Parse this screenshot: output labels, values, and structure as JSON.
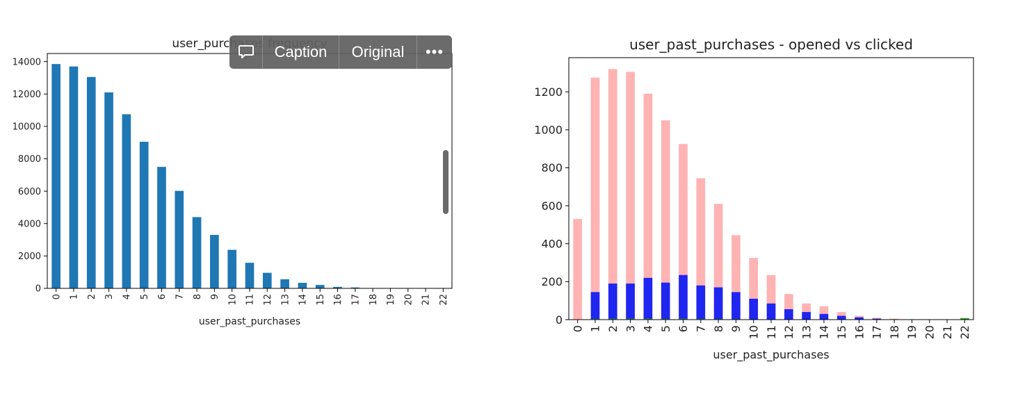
{
  "toolbar": {
    "comment_icon": "speech-bubble-icon",
    "caption_label": "Caption",
    "original_label": "Original",
    "more_icon": "ellipsis-icon",
    "more_label": "•••"
  },
  "chart_data": [
    {
      "type": "bar",
      "title": "user_purchases frequency",
      "xlabel": "user_past_purchases",
      "ylabel": "",
      "categories": [
        "0",
        "1",
        "2",
        "3",
        "4",
        "5",
        "6",
        "7",
        "8",
        "9",
        "10",
        "11",
        "12",
        "13",
        "14",
        "15",
        "16",
        "17",
        "18",
        "19",
        "20",
        "21",
        "22"
      ],
      "values": [
        13850,
        13700,
        13050,
        12100,
        10750,
        9050,
        7500,
        6020,
        4400,
        3300,
        2380,
        1580,
        960,
        560,
        340,
        210,
        90,
        55,
        20,
        12,
        8,
        5,
        3
      ],
      "ylim": [
        0,
        14500
      ],
      "yticks": [
        0,
        2000,
        4000,
        6000,
        8000,
        10000,
        12000,
        14000
      ],
      "color": "#1f77b4",
      "grid": false
    },
    {
      "type": "bar",
      "title": "user_past_purchases - opened vs clicked",
      "xlabel": "user_past_purchases",
      "ylabel": "",
      "categories": [
        "0",
        "1",
        "2",
        "3",
        "4",
        "5",
        "6",
        "7",
        "8",
        "9",
        "10",
        "11",
        "12",
        "13",
        "14",
        "15",
        "16",
        "17",
        "18",
        "19",
        "20",
        "21",
        "22"
      ],
      "ylim": [
        0,
        1380
      ],
      "yticks": [
        0,
        200,
        400,
        600,
        800,
        1000,
        1200
      ],
      "grid": false,
      "series": [
        {
          "color": "#ffb3b3",
          "values": [
            530,
            1275,
            1320,
            1305,
            1190,
            1050,
            925,
            745,
            610,
            445,
            325,
            235,
            135,
            85,
            70,
            40,
            20,
            10,
            5,
            2,
            1,
            1,
            0
          ]
        },
        {
          "color": "#1f26f0",
          "values": [
            0,
            145,
            190,
            190,
            220,
            195,
            235,
            180,
            170,
            145,
            110,
            85,
            55,
            40,
            30,
            20,
            12,
            5,
            2,
            1,
            0,
            0,
            0
          ]
        },
        {
          "color": "#2ca02c",
          "values": [
            0,
            4,
            5,
            5,
            5,
            4,
            5,
            4,
            3,
            3,
            2,
            2,
            1,
            1,
            1,
            0,
            0,
            0,
            0,
            0,
            0,
            0,
            8
          ]
        }
      ]
    }
  ]
}
